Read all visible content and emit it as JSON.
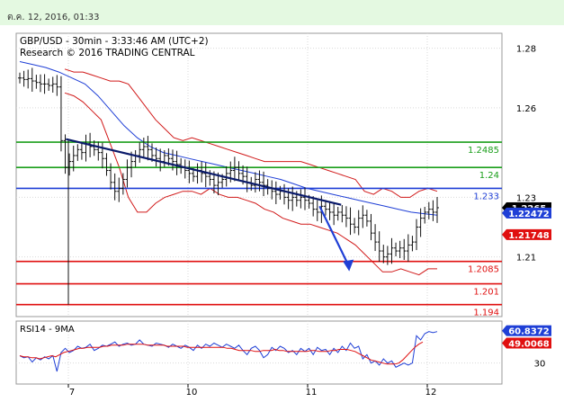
{
  "header": {
    "datetime": "ต.ค. 12, 2016, 01:33"
  },
  "chart_data": [
    {
      "type": "line",
      "title": "GBP/USD - 30min - 3:33:46 AM (UTC+2)",
      "subtitle": "Research © 2016 TRADING CENTRAL",
      "ylim": [
        1.19,
        1.285
      ],
      "y_ticks": [
        1.28,
        1.26,
        1.23,
        1.21
      ],
      "x_ticks": [
        {
          "label": "7",
          "day": 0
        },
        {
          "label": "10",
          "day": 1
        },
        {
          "label": "11",
          "day": 2
        },
        {
          "label": "12",
          "day": 3
        }
      ],
      "series": [
        {
          "values": [
            1.27,
            1.2695,
            1.2698,
            1.269,
            1.2685,
            1.268,
            1.268,
            1.2675,
            1.268,
            1.267,
            1.249,
            1.24,
            1.242,
            1.244,
            1.246,
            1.245,
            1.248,
            1.247,
            1.246,
            1.245,
            1.243,
            1.239,
            1.235,
            1.232,
            1.233,
            1.236,
            1.24,
            1.242,
            1.244,
            1.246,
            1.247,
            1.246,
            1.244,
            1.243,
            1.242,
            1.244,
            1.243,
            1.242,
            1.241,
            1.24,
            1.239,
            1.238,
            1.237,
            1.239,
            1.238,
            1.237,
            1.236,
            1.234,
            1.235,
            1.236,
            1.238,
            1.239,
            1.24,
            1.238,
            1.237,
            1.235,
            1.234,
            1.236,
            1.235,
            1.234,
            1.233,
            1.232,
            1.231,
            1.232,
            1.23,
            1.229,
            1.23,
            1.229,
            1.23,
            1.229,
            1.228,
            1.226,
            1.225,
            1.227,
            1.226,
            1.225,
            1.224,
            1.225,
            1.224,
            1.223,
            1.221,
            1.22,
            1.223,
            1.224,
            1.222,
            1.218,
            1.215,
            1.212,
            1.21,
            1.211,
            1.213,
            1.212,
            1.213,
            1.212,
            1.214,
            1.215,
            1.22,
            1.223,
            1.225,
            1.226,
            1.225,
            1.2265
          ]
        }
      ],
      "bollinger_upper": [
        1.273,
        1.272,
        1.272,
        1.271,
        1.27,
        1.269,
        1.269,
        1.268,
        1.264,
        1.26,
        1.256,
        1.253,
        1.25,
        1.249,
        1.25,
        1.249,
        1.248,
        1.247,
        1.246,
        1.245,
        1.244,
        1.243,
        1.242,
        1.242,
        1.242,
        1.242,
        1.242,
        1.241,
        1.24,
        1.239,
        1.238,
        1.237,
        1.236,
        1.232,
        1.231,
        1.233,
        1.232,
        1.23,
        1.23,
        1.232,
        1.233,
        1.232
      ],
      "bollinger_lower": [
        1.265,
        1.264,
        1.262,
        1.259,
        1.256,
        1.248,
        1.24,
        1.23,
        1.225,
        1.225,
        1.228,
        1.23,
        1.231,
        1.232,
        1.232,
        1.231,
        1.233,
        1.231,
        1.23,
        1.23,
        1.229,
        1.228,
        1.226,
        1.225,
        1.223,
        1.222,
        1.221,
        1.221,
        1.22,
        1.219,
        1.218,
        1.216,
        1.214,
        1.211,
        1.208,
        1.205,
        1.205,
        1.206,
        1.205,
        1.204,
        1.206,
        1.206
      ],
      "moving_average": [
        1.2755,
        1.2745,
        1.2735,
        1.272,
        1.27,
        1.268,
        1.264,
        1.259,
        1.254,
        1.25,
        1.247,
        1.245,
        1.244,
        1.243,
        1.242,
        1.241,
        1.24,
        1.239,
        1.238,
        1.237,
        1.236,
        1.2345,
        1.233,
        1.232,
        1.231,
        1.23,
        1.229,
        1.228,
        1.227,
        1.226,
        1.225,
        1.2245,
        1.224
      ],
      "horizontal_levels": [
        {
          "value": 1.2485,
          "label": "1.2485",
          "color": "#1a9e1a"
        },
        {
          "value": 1.24,
          "label": "1.24",
          "color": "#1a9e1a"
        },
        {
          "value": 1.233,
          "label": "1.233",
          "color": "#1f3fd6"
        },
        {
          "value": 1.2085,
          "label": "1.2085",
          "color": "#e01010"
        },
        {
          "value": 1.201,
          "label": "1.201",
          "color": "#e01010"
        },
        {
          "value": 1.194,
          "label": "1.194",
          "color": "#e01010"
        }
      ],
      "trendline": {
        "from": [
          0.98,
          1.2495
        ],
        "to": [
          3.28,
          1.2275
        ],
        "color": "#0a1a6a"
      },
      "forecast_arrow": {
        "from": [
          3.1,
          1.227
        ],
        "to": [
          3.34,
          1.2055
        ],
        "color": "#1f3fd6"
      },
      "price_labels": [
        {
          "value": 1.2265,
          "label": "1.2265",
          "color": "#000000"
        },
        {
          "value": 1.22472,
          "label": "1.22472",
          "color": "#1f3fd6"
        },
        {
          "value": 1.21748,
          "label": "1.21748",
          "color": "#e01010"
        }
      ]
    },
    {
      "type": "line",
      "title": "RSI14 - 9MA",
      "ylim": [
        10,
        70
      ],
      "y_ticks": [
        30
      ],
      "series": [
        {
          "values": [
            37,
            35,
            36,
            31,
            35,
            33,
            36,
            34,
            37,
            22,
            40,
            44,
            40,
            42,
            46,
            44,
            45,
            48,
            42,
            44,
            47,
            46,
            48,
            50,
            46,
            48,
            49,
            47,
            48,
            52,
            48,
            47,
            46,
            49,
            48,
            47,
            45,
            48,
            46,
            44,
            47,
            45,
            42,
            47,
            44,
            48,
            46,
            49,
            47,
            45,
            48,
            46,
            44,
            47,
            42,
            38,
            44,
            46,
            42,
            35,
            38,
            45,
            42,
            46,
            44,
            40,
            42,
            38,
            44,
            41,
            44,
            38,
            45,
            42,
            43,
            38,
            44,
            40,
            46,
            42,
            49,
            44,
            46,
            34,
            38,
            30,
            32,
            28,
            34,
            30,
            32,
            26,
            28,
            30,
            28,
            30,
            56,
            52,
            58,
            60,
            59,
            60
          ]
        },
        {
          "values": [
            37,
            36,
            36,
            35,
            35,
            34,
            35,
            36,
            37,
            36,
            38,
            40,
            41,
            42,
            43,
            44,
            44,
            45,
            45,
            45,
            45,
            46,
            46,
            47,
            47,
            47,
            47,
            48,
            48,
            48,
            48,
            48,
            47,
            47,
            47,
            47,
            47,
            46,
            46,
            46,
            46,
            46,
            45,
            45,
            45,
            45,
            45,
            45,
            45,
            45,
            45,
            45,
            44,
            44,
            43,
            42,
            42,
            42,
            42,
            41,
            41,
            42,
            42,
            42,
            43,
            42,
            42,
            41,
            41,
            41,
            41,
            41,
            41,
            42,
            42,
            41,
            41,
            41,
            42,
            42,
            43,
            43,
            43,
            42,
            41,
            39,
            37,
            35,
            33,
            32,
            31,
            30,
            29,
            29,
            29,
            30,
            33,
            37,
            41,
            45,
            48,
            50
          ]
        }
      ],
      "value_labels": [
        {
          "value": 60.8372,
          "label": "60.8372",
          "color": "#1f3fd6"
        },
        {
          "value": 49.0068,
          "label": "49.0068",
          "color": "#e01010"
        }
      ]
    }
  ]
}
